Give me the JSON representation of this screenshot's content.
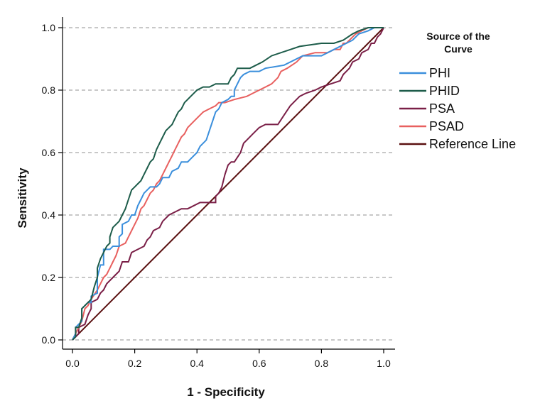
{
  "chart_data": {
    "type": "line",
    "title": "",
    "xlabel": "1 - Specificity",
    "ylabel": "Sensitivity",
    "xlim": [
      0,
      1
    ],
    "ylim": [
      0,
      1
    ],
    "x_ticks": [
      "0.0",
      "0.2",
      "0.4",
      "0.6",
      "0.8",
      "1.0"
    ],
    "y_ticks": [
      "0.0",
      "0.2",
      "0.4",
      "0.6",
      "0.8",
      "1.0"
    ],
    "grid": "horizontal-dashed",
    "legend_title_lines": [
      "Source of the",
      "Curve"
    ],
    "legend_position": "right",
    "series": [
      {
        "name": "PHI",
        "color": "#3b8fdc",
        "points": [
          [
            0,
            0
          ],
          [
            0.01,
            0.02
          ],
          [
            0.01,
            0.04
          ],
          [
            0.03,
            0.06
          ],
          [
            0.03,
            0.1
          ],
          [
            0.05,
            0.12
          ],
          [
            0.06,
            0.12
          ],
          [
            0.06,
            0.14
          ],
          [
            0.08,
            0.15
          ],
          [
            0.08,
            0.2
          ],
          [
            0.09,
            0.24
          ],
          [
            0.1,
            0.24
          ],
          [
            0.1,
            0.29
          ],
          [
            0.12,
            0.29
          ],
          [
            0.13,
            0.3
          ],
          [
            0.15,
            0.3
          ],
          [
            0.15,
            0.33
          ],
          [
            0.16,
            0.34
          ],
          [
            0.16,
            0.37
          ],
          [
            0.18,
            0.38
          ],
          [
            0.19,
            0.4
          ],
          [
            0.2,
            0.4
          ],
          [
            0.21,
            0.43
          ],
          [
            0.22,
            0.45
          ],
          [
            0.23,
            0.47
          ],
          [
            0.24,
            0.48
          ],
          [
            0.25,
            0.49
          ],
          [
            0.27,
            0.49
          ],
          [
            0.28,
            0.5
          ],
          [
            0.29,
            0.52
          ],
          [
            0.31,
            0.52
          ],
          [
            0.32,
            0.54
          ],
          [
            0.34,
            0.55
          ],
          [
            0.35,
            0.57
          ],
          [
            0.37,
            0.57
          ],
          [
            0.38,
            0.58
          ],
          [
            0.4,
            0.6
          ],
          [
            0.41,
            0.62
          ],
          [
            0.43,
            0.64
          ],
          [
            0.44,
            0.67
          ],
          [
            0.45,
            0.7
          ],
          [
            0.46,
            0.73
          ],
          [
            0.47,
            0.74
          ],
          [
            0.48,
            0.76
          ],
          [
            0.5,
            0.77
          ],
          [
            0.51,
            0.78
          ],
          [
            0.52,
            0.78
          ],
          [
            0.52,
            0.8
          ],
          [
            0.53,
            0.82
          ],
          [
            0.54,
            0.84
          ],
          [
            0.55,
            0.85
          ],
          [
            0.57,
            0.86
          ],
          [
            0.6,
            0.86
          ],
          [
            0.62,
            0.87
          ],
          [
            0.68,
            0.88
          ],
          [
            0.72,
            0.9
          ],
          [
            0.74,
            0.91
          ],
          [
            0.8,
            0.91
          ],
          [
            0.84,
            0.93
          ],
          [
            0.88,
            0.95
          ],
          [
            0.9,
            0.96
          ],
          [
            0.92,
            0.98
          ],
          [
            0.95,
            0.99
          ],
          [
            0.97,
            1.0
          ],
          [
            1.0,
            1.0
          ]
        ]
      },
      {
        "name": "PHID",
        "color": "#1d5c4a",
        "points": [
          [
            0,
            0
          ],
          [
            0.01,
            0.01
          ],
          [
            0.01,
            0.04
          ],
          [
            0.02,
            0.04
          ],
          [
            0.03,
            0.07
          ],
          [
            0.03,
            0.1
          ],
          [
            0.05,
            0.12
          ],
          [
            0.06,
            0.13
          ],
          [
            0.07,
            0.17
          ],
          [
            0.08,
            0.2
          ],
          [
            0.08,
            0.23
          ],
          [
            0.09,
            0.26
          ],
          [
            0.1,
            0.28
          ],
          [
            0.11,
            0.3
          ],
          [
            0.12,
            0.31
          ],
          [
            0.12,
            0.33
          ],
          [
            0.13,
            0.36
          ],
          [
            0.14,
            0.37
          ],
          [
            0.15,
            0.38
          ],
          [
            0.16,
            0.4
          ],
          [
            0.17,
            0.42
          ],
          [
            0.18,
            0.45
          ],
          [
            0.19,
            0.48
          ],
          [
            0.2,
            0.49
          ],
          [
            0.21,
            0.5
          ],
          [
            0.22,
            0.51
          ],
          [
            0.23,
            0.53
          ],
          [
            0.24,
            0.55
          ],
          [
            0.25,
            0.57
          ],
          [
            0.26,
            0.58
          ],
          [
            0.27,
            0.61
          ],
          [
            0.28,
            0.63
          ],
          [
            0.29,
            0.65
          ],
          [
            0.3,
            0.67
          ],
          [
            0.31,
            0.68
          ],
          [
            0.32,
            0.69
          ],
          [
            0.33,
            0.71
          ],
          [
            0.34,
            0.73
          ],
          [
            0.35,
            0.74
          ],
          [
            0.36,
            0.76
          ],
          [
            0.37,
            0.77
          ],
          [
            0.38,
            0.78
          ],
          [
            0.39,
            0.79
          ],
          [
            0.4,
            0.8
          ],
          [
            0.42,
            0.81
          ],
          [
            0.44,
            0.81
          ],
          [
            0.46,
            0.82
          ],
          [
            0.5,
            0.82
          ],
          [
            0.51,
            0.84
          ],
          [
            0.52,
            0.85
          ],
          [
            0.53,
            0.87
          ],
          [
            0.57,
            0.87
          ],
          [
            0.59,
            0.88
          ],
          [
            0.61,
            0.89
          ],
          [
            0.64,
            0.91
          ],
          [
            0.7,
            0.93
          ],
          [
            0.73,
            0.94
          ],
          [
            0.8,
            0.95
          ],
          [
            0.84,
            0.95
          ],
          [
            0.87,
            0.96
          ],
          [
            0.9,
            0.98
          ],
          [
            0.92,
            0.99
          ],
          [
            0.95,
            1.0
          ],
          [
            1.0,
            1.0
          ]
        ]
      },
      {
        "name": "PSA",
        "color": "#7a1f47",
        "points": [
          [
            0,
            0
          ],
          [
            0.02,
            0.02
          ],
          [
            0.02,
            0.04
          ],
          [
            0.04,
            0.05
          ],
          [
            0.05,
            0.08
          ],
          [
            0.06,
            0.1
          ],
          [
            0.06,
            0.12
          ],
          [
            0.08,
            0.13
          ],
          [
            0.09,
            0.15
          ],
          [
            0.1,
            0.16
          ],
          [
            0.11,
            0.18
          ],
          [
            0.13,
            0.2
          ],
          [
            0.15,
            0.22
          ],
          [
            0.16,
            0.25
          ],
          [
            0.18,
            0.25
          ],
          [
            0.19,
            0.28
          ],
          [
            0.21,
            0.29
          ],
          [
            0.23,
            0.3
          ],
          [
            0.24,
            0.32
          ],
          [
            0.25,
            0.33
          ],
          [
            0.26,
            0.35
          ],
          [
            0.28,
            0.36
          ],
          [
            0.29,
            0.38
          ],
          [
            0.31,
            0.4
          ],
          [
            0.33,
            0.41
          ],
          [
            0.35,
            0.42
          ],
          [
            0.37,
            0.42
          ],
          [
            0.39,
            0.43
          ],
          [
            0.41,
            0.44
          ],
          [
            0.43,
            0.44
          ],
          [
            0.46,
            0.44
          ],
          [
            0.46,
            0.46
          ],
          [
            0.47,
            0.47
          ],
          [
            0.48,
            0.49
          ],
          [
            0.49,
            0.53
          ],
          [
            0.5,
            0.56
          ],
          [
            0.51,
            0.57
          ],
          [
            0.52,
            0.57
          ],
          [
            0.54,
            0.6
          ],
          [
            0.55,
            0.63
          ],
          [
            0.56,
            0.64
          ],
          [
            0.58,
            0.66
          ],
          [
            0.6,
            0.68
          ],
          [
            0.62,
            0.69
          ],
          [
            0.66,
            0.69
          ],
          [
            0.68,
            0.72
          ],
          [
            0.7,
            0.75
          ],
          [
            0.71,
            0.76
          ],
          [
            0.73,
            0.78
          ],
          [
            0.75,
            0.79
          ],
          [
            0.78,
            0.8
          ],
          [
            0.8,
            0.81
          ],
          [
            0.83,
            0.82
          ],
          [
            0.86,
            0.83
          ],
          [
            0.87,
            0.85
          ],
          [
            0.89,
            0.87
          ],
          [
            0.9,
            0.89
          ],
          [
            0.92,
            0.9
          ],
          [
            0.93,
            0.92
          ],
          [
            0.95,
            0.93
          ],
          [
            0.96,
            0.95
          ],
          [
            0.97,
            0.95
          ],
          [
            0.98,
            0.97
          ],
          [
            0.99,
            0.98
          ],
          [
            1.0,
            1.0
          ]
        ]
      },
      {
        "name": "PSAD",
        "color": "#e8605f",
        "points": [
          [
            0,
            0
          ],
          [
            0.01,
            0.02
          ],
          [
            0.02,
            0.04
          ],
          [
            0.03,
            0.06
          ],
          [
            0.04,
            0.1
          ],
          [
            0.05,
            0.11
          ],
          [
            0.06,
            0.13
          ],
          [
            0.08,
            0.16
          ],
          [
            0.09,
            0.18
          ],
          [
            0.1,
            0.2
          ],
          [
            0.11,
            0.21
          ],
          [
            0.12,
            0.23
          ],
          [
            0.13,
            0.25
          ],
          [
            0.14,
            0.27
          ],
          [
            0.15,
            0.3
          ],
          [
            0.17,
            0.31
          ],
          [
            0.18,
            0.33
          ],
          [
            0.19,
            0.35
          ],
          [
            0.2,
            0.37
          ],
          [
            0.21,
            0.39
          ],
          [
            0.22,
            0.42
          ],
          [
            0.23,
            0.43
          ],
          [
            0.24,
            0.45
          ],
          [
            0.25,
            0.47
          ],
          [
            0.26,
            0.48
          ],
          [
            0.27,
            0.5
          ],
          [
            0.28,
            0.51
          ],
          [
            0.29,
            0.53
          ],
          [
            0.3,
            0.55
          ],
          [
            0.31,
            0.57
          ],
          [
            0.32,
            0.59
          ],
          [
            0.33,
            0.61
          ],
          [
            0.34,
            0.63
          ],
          [
            0.35,
            0.65
          ],
          [
            0.36,
            0.66
          ],
          [
            0.37,
            0.68
          ],
          [
            0.38,
            0.69
          ],
          [
            0.4,
            0.71
          ],
          [
            0.41,
            0.72
          ],
          [
            0.42,
            0.73
          ],
          [
            0.44,
            0.74
          ],
          [
            0.46,
            0.75
          ],
          [
            0.47,
            0.76
          ],
          [
            0.49,
            0.76
          ],
          [
            0.52,
            0.77
          ],
          [
            0.56,
            0.78
          ],
          [
            0.58,
            0.79
          ],
          [
            0.6,
            0.8
          ],
          [
            0.62,
            0.81
          ],
          [
            0.64,
            0.82
          ],
          [
            0.66,
            0.84
          ],
          [
            0.67,
            0.86
          ],
          [
            0.69,
            0.87
          ],
          [
            0.72,
            0.89
          ],
          [
            0.74,
            0.91
          ],
          [
            0.78,
            0.92
          ],
          [
            0.82,
            0.92
          ],
          [
            0.84,
            0.93
          ],
          [
            0.86,
            0.93
          ],
          [
            0.87,
            0.95
          ],
          [
            0.88,
            0.95
          ],
          [
            0.9,
            0.97
          ],
          [
            0.91,
            0.98
          ],
          [
            0.93,
            0.99
          ],
          [
            0.95,
            1.0
          ],
          [
            1.0,
            1.0
          ]
        ]
      },
      {
        "name": "Reference Line",
        "color": "#5a1010",
        "points": [
          [
            0,
            0
          ],
          [
            1,
            1
          ]
        ]
      }
    ]
  }
}
